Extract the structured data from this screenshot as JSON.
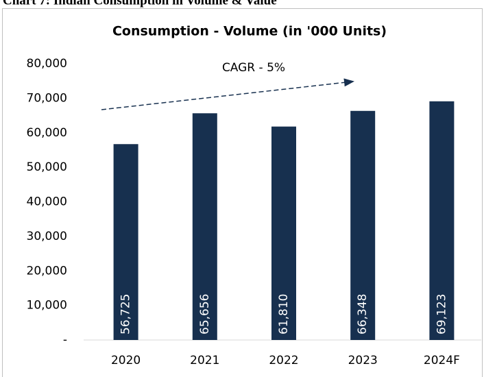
{
  "header": "Chart 7: Indian Consumption in Volume & Value",
  "chart_data": {
    "type": "bar",
    "title": "Consumption - Volume (in '000 Units)",
    "annotation": "CAGR - 5%",
    "categories": [
      "2020",
      "2021",
      "2022",
      "2023",
      "2024F"
    ],
    "values": [
      56725,
      65656,
      61810,
      66348,
      69123
    ],
    "value_labels": [
      "56,725",
      "65,656",
      "61,810",
      "66,348",
      "69,123"
    ],
    "color": "#17304f",
    "ylim": [
      0,
      80000
    ],
    "yticks": [
      {
        "value": 0,
        "label": "-"
      },
      {
        "value": 10000,
        "label": "10,000"
      },
      {
        "value": 20000,
        "label": "20,000"
      },
      {
        "value": 30000,
        "label": "30,000"
      },
      {
        "value": 40000,
        "label": "40,000"
      },
      {
        "value": 50000,
        "label": "50,000"
      },
      {
        "value": 60000,
        "label": "60,000"
      },
      {
        "value": 70000,
        "label": "70,000"
      },
      {
        "value": 80000,
        "label": "80,000"
      }
    ],
    "grid": false
  }
}
